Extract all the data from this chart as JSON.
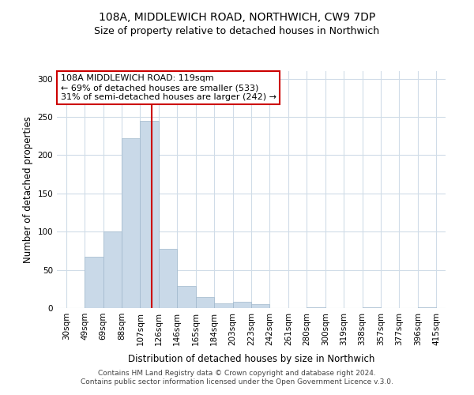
{
  "title": "108A, MIDDLEWICH ROAD, NORTHWICH, CW9 7DP",
  "subtitle": "Size of property relative to detached houses in Northwich",
  "xlabel": "Distribution of detached houses by size in Northwich",
  "ylabel": "Number of detached properties",
  "all_bar_values": [
    0,
    67,
    100,
    222,
    245,
    77,
    29,
    14,
    6,
    8,
    5,
    0,
    0,
    1,
    0,
    0,
    1,
    0,
    0,
    1
  ],
  "tick_labels": [
    "30sqm",
    "49sqm",
    "69sqm",
    "88sqm",
    "107sqm",
    "126sqm",
    "146sqm",
    "165sqm",
    "184sqm",
    "203sqm",
    "223sqm",
    "242sqm",
    "261sqm",
    "280sqm",
    "300sqm",
    "319sqm",
    "338sqm",
    "357sqm",
    "377sqm",
    "396sqm",
    "415sqm"
  ],
  "bar_color": "#c9d9e8",
  "bar_edge_color": "#a0b8cc",
  "vline_color": "#cc0000",
  "vline_pos": 4.631578947368421,
  "annotation_lines": [
    "108A MIDDLEWICH ROAD: 119sqm",
    "← 69% of detached houses are smaller (533)",
    "31% of semi-detached houses are larger (242) →"
  ],
  "annotation_box_color": "#cc0000",
  "ylim": [
    0,
    310
  ],
  "yticks": [
    0,
    50,
    100,
    150,
    200,
    250,
    300
  ],
  "xlim": [
    -0.5,
    20.5
  ],
  "footer_line1": "Contains HM Land Registry data © Crown copyright and database right 2024.",
  "footer_line2": "Contains public sector information licensed under the Open Government Licence v.3.0.",
  "background_color": "#ffffff",
  "grid_color": "#d0dce8",
  "title_fontsize": 10,
  "subtitle_fontsize": 9,
  "tick_fontsize": 7.5,
  "axis_label_fontsize": 8.5,
  "annotation_fontsize": 8,
  "footer_fontsize": 6.5
}
